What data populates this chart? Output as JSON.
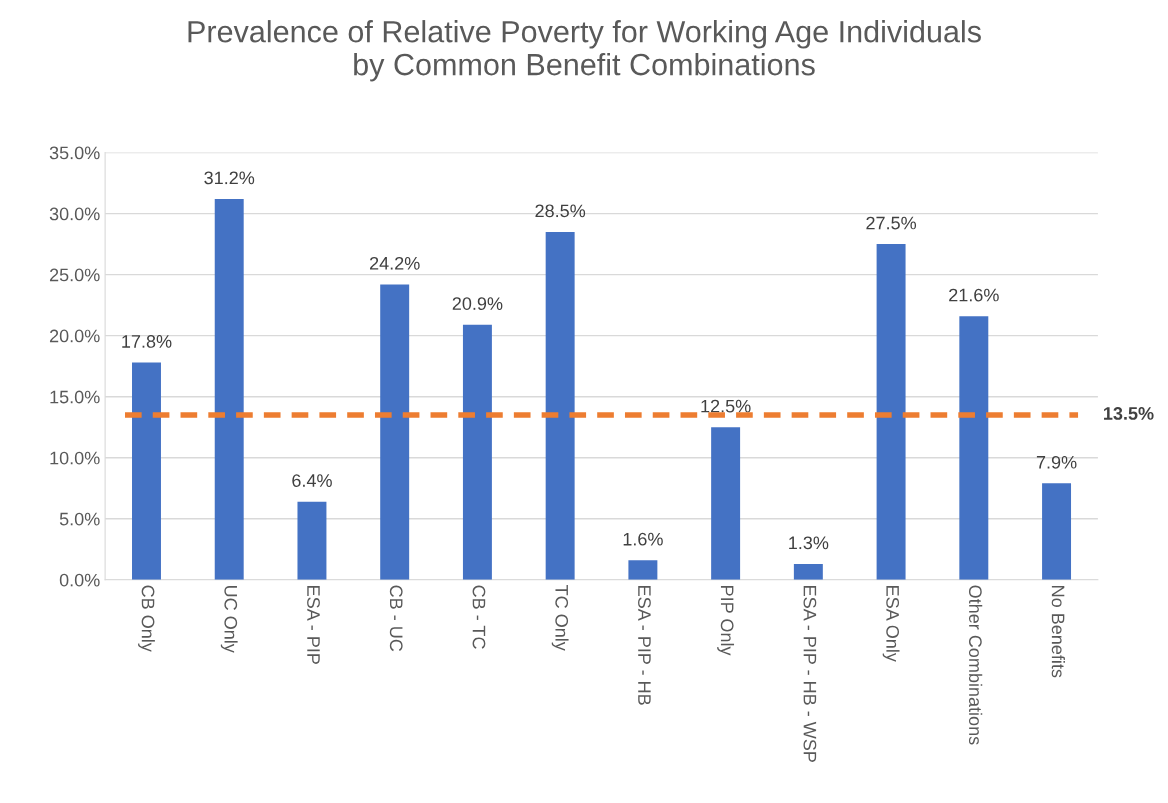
{
  "chart_data": {
    "type": "bar",
    "title": "Prevalence of Relative Poverty for Working Age Individuals\nby Common Benefit Combinations",
    "categories": [
      "CB Only",
      "UC Only",
      "ESA - PIP",
      "CB - UC",
      "CB - TC",
      "TC Only",
      "ESA - PIP - HB",
      "PIP Only",
      "ESA - PIP - HB - WSP",
      "ESA Only",
      "Other Combinations",
      "No Benefits"
    ],
    "values": [
      17.8,
      31.2,
      6.4,
      24.2,
      20.9,
      28.5,
      1.6,
      12.5,
      1.3,
      27.5,
      21.6,
      7.9
    ],
    "value_labels": [
      "17.8%",
      "31.2%",
      "6.4%",
      "24.2%",
      "20.9%",
      "28.5%",
      "1.6%",
      "12.5%",
      "1.3%",
      "27.5%",
      "21.6%",
      "7.9%"
    ],
    "color": "#4472c4",
    "ylim": [
      0,
      35
    ],
    "yticks": [
      {
        "value": 0,
        "label": "0.0%"
      },
      {
        "value": 5,
        "label": "5.0%"
      },
      {
        "value": 10,
        "label": "10.0%"
      },
      {
        "value": 15,
        "label": "15.0%"
      },
      {
        "value": 20,
        "label": "20.0%"
      },
      {
        "value": 25,
        "label": "25.0%"
      },
      {
        "value": 30,
        "label": "30.0%"
      },
      {
        "value": 35,
        "label": "35.0%"
      }
    ],
    "ref_lines": [
      {
        "axis": "y",
        "value": 13.5,
        "label": "13.5%",
        "color": "#ed7d31",
        "line_style": "dashed"
      }
    ],
    "grid": "y",
    "legend": false
  }
}
